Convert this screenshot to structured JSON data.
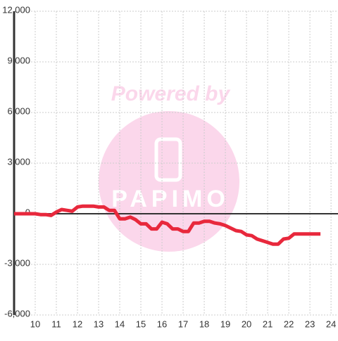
{
  "chart_data": {
    "type": "line",
    "watermark": {
      "title": "Powered by",
      "brand": "PAPIMO"
    },
    "x": [
      9,
      9.25,
      9.5,
      9.75,
      10,
      10.25,
      10.5,
      10.75,
      11,
      11.25,
      11.5,
      11.75,
      12,
      12.25,
      12.5,
      12.75,
      13,
      13.25,
      13.5,
      13.75,
      14,
      14.25,
      14.5,
      14.75,
      15,
      15.25,
      15.5,
      15.75,
      16,
      16.25,
      16.5,
      16.75,
      17,
      17.25,
      17.5,
      17.75,
      18,
      18.25,
      18.5,
      18.75,
      19,
      19.25,
      19.5,
      19.75,
      20,
      20.25,
      20.5,
      20.75,
      21,
      21.25,
      21.5,
      21.75,
      22,
      22.25,
      22.5,
      22.75,
      23,
      23.25,
      23.5
    ],
    "series": [
      {
        "color": "#e8283c",
        "values": [
          0,
          0,
          0,
          0,
          0,
          -50,
          -50,
          -100,
          100,
          250,
          200,
          150,
          400,
          450,
          450,
          450,
          400,
          400,
          200,
          200,
          -300,
          -300,
          -200,
          -350,
          -600,
          -600,
          -900,
          -900,
          -500,
          -600,
          -900,
          -900,
          -1050,
          -1050,
          -550,
          -550,
          -450,
          -450,
          -550,
          -600,
          -700,
          -850,
          -1000,
          -1050,
          -1250,
          -1300,
          -1500,
          -1600,
          -1700,
          -1800,
          -1800,
          -1500,
          -1450,
          -1200,
          -1200,
          -1200,
          -1200,
          -1200,
          -1200
        ]
      }
    ],
    "xlim": [
      9,
      24.33
    ],
    "ylim": [
      -6000,
      12000
    ],
    "xticks": [
      10,
      11,
      12,
      13,
      14,
      15,
      16,
      17,
      18,
      19,
      20,
      21,
      22,
      23,
      24
    ],
    "yticks": [
      {
        "value": -6000,
        "label": "-6,000"
      },
      {
        "value": -3000,
        "label": "-3,000"
      },
      0,
      {
        "value": 3000,
        "label": "3,000"
      },
      {
        "value": 6000,
        "label": "6,000"
      },
      {
        "value": 9000,
        "label": "9,000"
      },
      {
        "value": 12000,
        "label": "12,000"
      }
    ],
    "grid": true
  }
}
